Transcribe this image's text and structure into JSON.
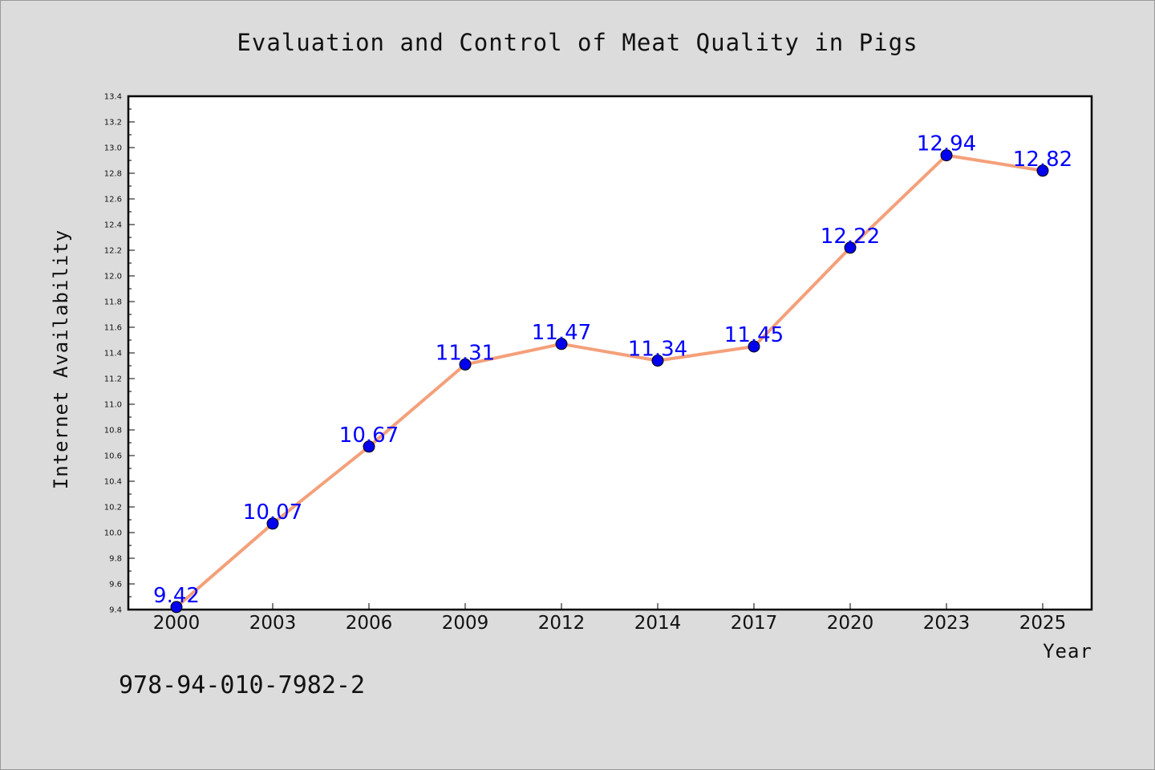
{
  "chart_data": {
    "type": "line",
    "title": "Evaluation and Control of Meat Quality in Pigs",
    "xlabel": "Year",
    "ylabel": "Internet Availability",
    "categories": [
      "2000",
      "2003",
      "2006",
      "2009",
      "2012",
      "2014",
      "2017",
      "2020",
      "2023",
      "2025"
    ],
    "values": [
      9.42,
      10.07,
      10.67,
      11.31,
      11.47,
      11.34,
      11.45,
      12.22,
      12.94,
      12.82
    ],
    "data_labels": [
      "9.42",
      "10.07",
      "10.67",
      "11.31",
      "11.47",
      "11.34",
      "11.45",
      "12.22",
      "12.94",
      "12.82"
    ],
    "ylim": [
      9.4,
      13.4
    ],
    "y_ticks": [
      "9.4",
      "9.6",
      "9.8",
      "10.0",
      "10.2",
      "10.4",
      "10.6",
      "10.8",
      "11.0",
      "11.2",
      "11.4",
      "11.6",
      "11.8",
      "12.0",
      "12.2",
      "12.4",
      "12.6",
      "12.8",
      "13.0",
      "13.2",
      "13.4"
    ],
    "grid": false,
    "line_color": "#f4a07a",
    "marker_color": "#0000ee",
    "label_color": "#0000ff",
    "background_color": "#dcdcdc",
    "plot_background_color": "#ffffff"
  },
  "footer": {
    "isbn": "978-94-010-7982-2"
  }
}
